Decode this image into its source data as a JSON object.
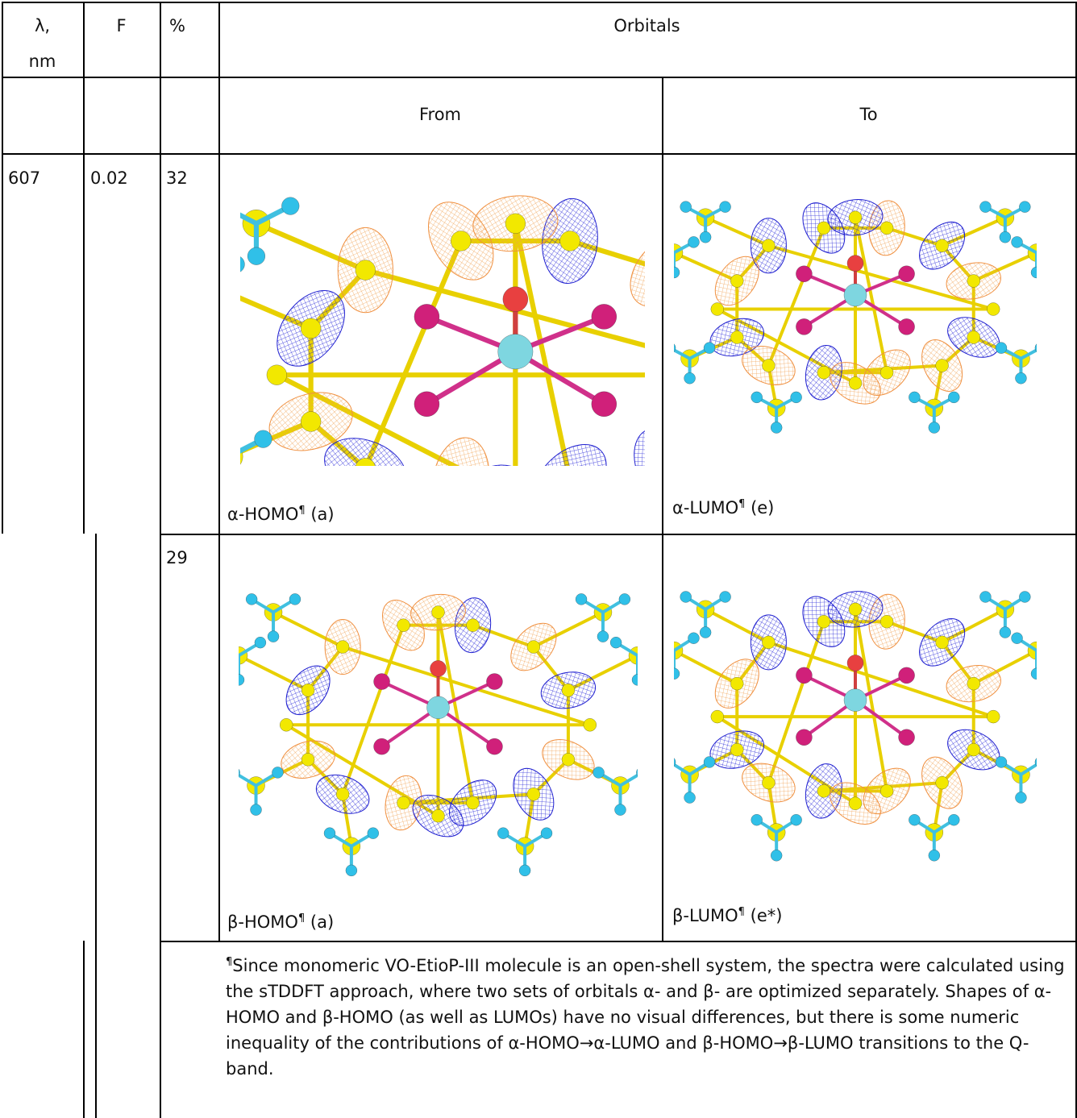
{
  "table": {
    "header": [
      "λ,",
      "nm",
      "F",
      "%",
      "Orbitals"
    ],
    "subheader": [
      "From",
      "To"
    ],
    "rows": [
      {
        "lambda": "607",
        "f": "0.02",
        "percent": "32",
        "from": {
          "name": "α-HOMO",
          "mark": "¶",
          "sym": "(a)"
        },
        "to": {
          "name": "α-LUMO",
          "mark": "¶",
          "sym": "(e)"
        }
      },
      {
        "percent": "29",
        "from": {
          "name": "β-HOMO",
          "mark": "¶",
          "sym": "(a)"
        },
        "to": {
          "name": "β-LUMO",
          "mark": "¶",
          "sym": "(e*)"
        }
      }
    ],
    "footnote": {
      "mark": "¶",
      "text": "Since monomeric VO-EtioP-III molecule is an open-shell system, the spectra were calculated using the sTDDFT approach, where two sets of orbitals α- and β- are optimized separately. Shapes of α-HOMO and β-HOMO (as well as LUMOs) have no visual differences, but there is some numeric inequality of the contributions of α-HOMO→α-LUMO and  β-HOMO→β-LUMO transitions to the Q-band."
    }
  }
}
